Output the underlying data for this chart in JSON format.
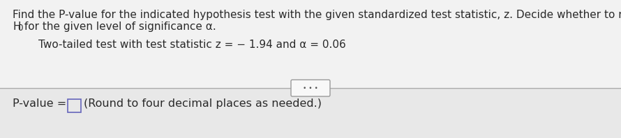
{
  "bg_color": "#f0f0f0",
  "upper_bg_color": "#f2f2f2",
  "lower_bg_color": "#e8e8e8",
  "line1": "Find the P-value for the indicated hypothesis test with the given standardized test statistic, z. Decide whether to reject",
  "line2_H": "H",
  "line2_sub": "0",
  "line2_rest": " for the given level of significance α.",
  "indented_line": "Two-tailed test with test statistic z = − 1.94 and α = 0.06",
  "dots_text": "• • •",
  "bottom_pvalue": "P-value = ",
  "bottom_round": "(Round to four decimal places as needed.)",
  "divider_color": "#aaaaaa",
  "text_color": "#2a2a2a",
  "box_color": "#6666bb",
  "font_size_main": 11.0,
  "font_size_bottom": 11.5
}
